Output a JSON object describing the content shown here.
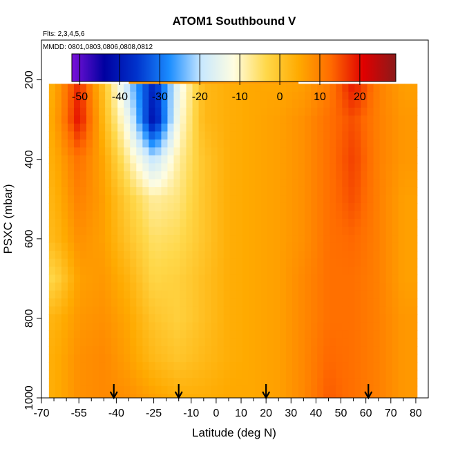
{
  "chart_data": {
    "type": "heatmap",
    "title": "ATOM1 Southbound V",
    "notes": [
      "Flts: 2,3,4,5,6",
      "MMDD: 0801,0803,0806,0808,0812"
    ],
    "xlabel": "Latitude (deg N)",
    "ylabel": "PSXC (mbar)",
    "xlim": [
      -70,
      85
    ],
    "ylim": [
      1000,
      100
    ],
    "x_ticks": [
      -70,
      -55,
      -40,
      -25,
      -10,
      0,
      10,
      20,
      30,
      40,
      50,
      60,
      70,
      80
    ],
    "x_minor_ticks": [
      -65,
      -60,
      -50,
      -45,
      -35,
      -30,
      -20,
      -15,
      -5,
      5,
      15,
      25,
      35,
      45,
      55,
      65,
      75
    ],
    "y_ticks": [
      200,
      400,
      600,
      800,
      1000
    ],
    "colorbar": {
      "ticks": [
        -50,
        -40,
        -30,
        -20,
        -10,
        0,
        10,
        20
      ],
      "range": [
        -52,
        29
      ],
      "colors": [
        "#7a11d9",
        "#0000a0",
        "#0033cc",
        "#1a8cff",
        "#c8e8ff",
        "#fffde0",
        "#ffd84a",
        "#ffaa00",
        "#ff6a00",
        "#e00000",
        "#8b1a1a"
      ]
    },
    "arrows_at_latitude": [
      -41,
      -15,
      20,
      61
    ],
    "field": {
      "latitudes": [
        -65,
        -55,
        -45,
        -35,
        -25,
        -15,
        -5,
        5,
        15,
        25,
        35,
        45,
        55,
        65,
        75
      ],
      "pressures": [
        200,
        300,
        400,
        500,
        600,
        700,
        800,
        900,
        1000
      ],
      "v_wind": [
        [
          4,
          18,
          0,
          -22,
          -38,
          -15,
          2,
          4,
          5,
          5,
          6,
          10,
          20,
          10,
          6
        ],
        [
          5,
          20,
          2,
          -15,
          -42,
          -12,
          2,
          4,
          5,
          6,
          8,
          12,
          15,
          10,
          7
        ],
        [
          4,
          12,
          5,
          -8,
          -20,
          -8,
          0,
          4,
          5,
          6,
          8,
          12,
          16,
          10,
          7
        ],
        [
          3,
          10,
          6,
          -2,
          -8,
          -6,
          0,
          4,
          5,
          6,
          8,
          12,
          15,
          10,
          6
        ],
        [
          2,
          8,
          6,
          0,
          -5,
          -4,
          0,
          4,
          5,
          6,
          8,
          12,
          13,
          10,
          6
        ],
        [
          -3,
          6,
          7,
          3,
          -3,
          -2,
          1,
          4,
          5,
          6,
          9,
          12,
          12,
          10,
          6
        ],
        [
          3,
          7,
          8,
          5,
          0,
          -2,
          1,
          4,
          5,
          6,
          9,
          12,
          12,
          10,
          7
        ],
        [
          4,
          8,
          9,
          6,
          2,
          0,
          2,
          4,
          5,
          6,
          9,
          13,
          12,
          10,
          7
        ],
        [
          4,
          8,
          9,
          8,
          6,
          4,
          4,
          5,
          5,
          6,
          9,
          14,
          12,
          10,
          7
        ]
      ]
    }
  }
}
